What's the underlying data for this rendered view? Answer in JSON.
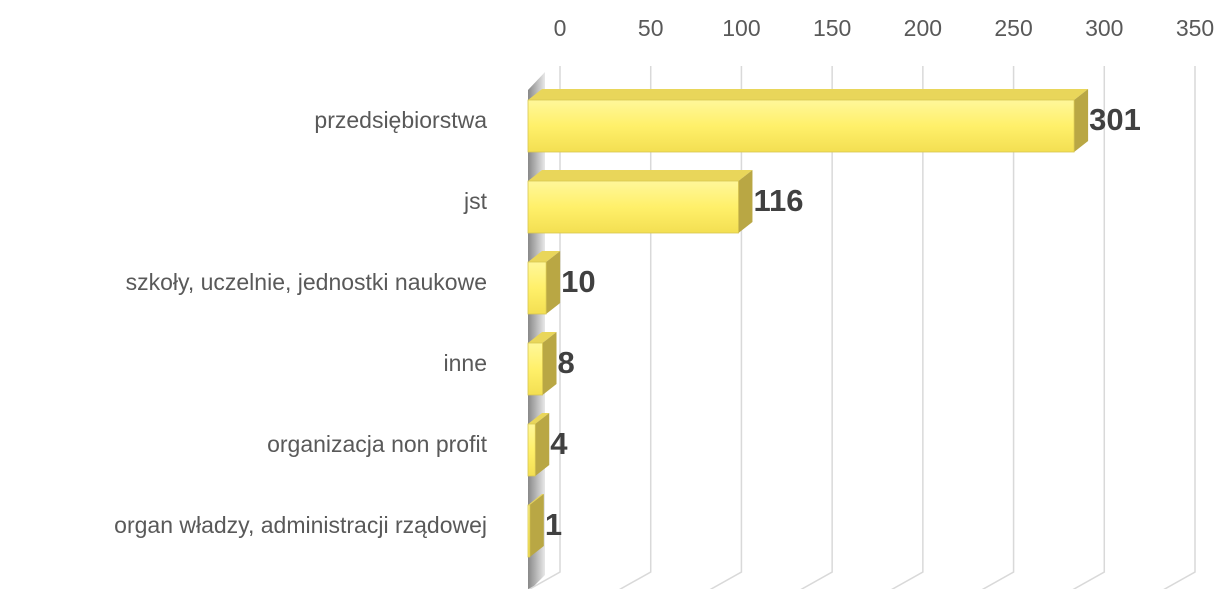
{
  "chart_data": {
    "type": "bar3d_horizontal",
    "categories": [
      "przedsiębiorstwa",
      "jst",
      "szkoły, uczelnie, jednostki naukowe",
      "inne",
      "organizacja non profit",
      "organ władzy, administracji rządowej"
    ],
    "values": [
      301,
      116,
      10,
      8,
      4,
      1
    ],
    "color": "#fff27a",
    "xlim": [
      0,
      350
    ],
    "xticks": [
      0,
      50,
      100,
      150,
      200,
      250,
      300,
      350
    ],
    "grid": true
  }
}
